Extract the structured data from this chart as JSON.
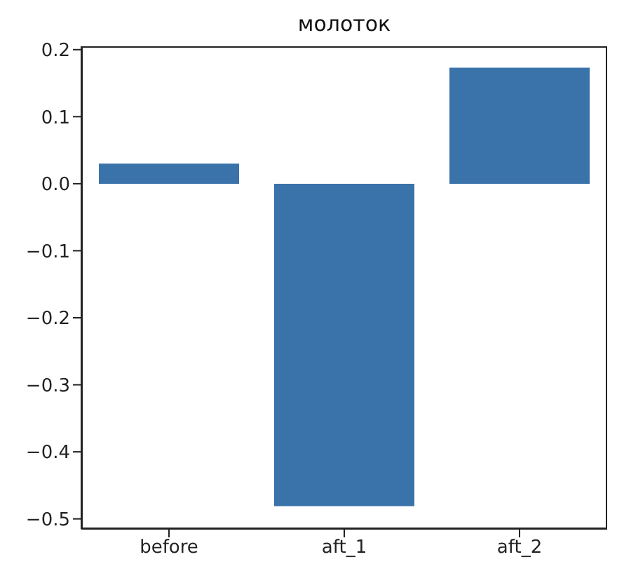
{
  "chart_data": {
    "type": "bar",
    "title": "молоток",
    "categories": [
      "before",
      "aft_1",
      "aft_2"
    ],
    "values": [
      0.03,
      -0.481,
      0.173
    ],
    "color": "#3a72aa",
    "ylim": [
      -0.515,
      0.205
    ],
    "yticks": [
      -0.5,
      -0.4,
      -0.3,
      -0.2,
      -0.1,
      {
        "value": 0,
        "label": "0.0"
      },
      0.1,
      0.2
    ],
    "grid": false
  }
}
